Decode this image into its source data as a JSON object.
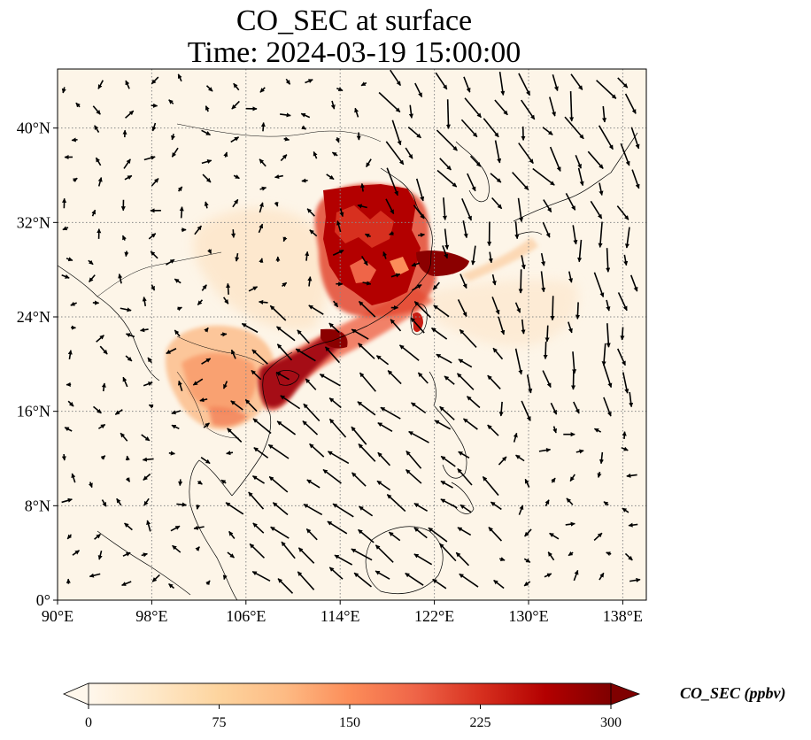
{
  "title": {
    "line1": "CO_SEC at surface",
    "line2": "Time: 2024-03-19 15:00:00"
  },
  "map": {
    "lon_range": [
      90,
      140
    ],
    "lat_range": [
      0,
      45
    ],
    "lon_ticks": [
      {
        "value": 90,
        "label": "90°E"
      },
      {
        "value": 98,
        "label": "98°E"
      },
      {
        "value": 106,
        "label": "106°E"
      },
      {
        "value": 114,
        "label": "114°E"
      },
      {
        "value": 122,
        "label": "122°E"
      },
      {
        "value": 130,
        "label": "130°E"
      },
      {
        "value": 138,
        "label": "138°E"
      }
    ],
    "lat_ticks": [
      {
        "value": 0,
        "label": "0°"
      },
      {
        "value": 8,
        "label": "8°N"
      },
      {
        "value": 16,
        "label": "16°N"
      },
      {
        "value": 24,
        "label": "24°N"
      },
      {
        "value": 32,
        "label": "32°N"
      },
      {
        "value": 40,
        "label": "40°N"
      }
    ],
    "gridlines": "dotted",
    "colors": {
      "background": "#fdf5e8",
      "coast": "#000000",
      "grid": "#888888"
    }
  },
  "colorbar": {
    "label": "CO_SEC (ppbv)",
    "ticks": [
      {
        "value": 0,
        "label": "0"
      },
      {
        "value": 75,
        "label": "75"
      },
      {
        "value": 150,
        "label": "150"
      },
      {
        "value": 225,
        "label": "225"
      },
      {
        "value": 300,
        "label": "300"
      }
    ],
    "range": [
      0,
      300
    ],
    "extend": "both",
    "colormap": "OrRd",
    "stops": [
      "#fff7ec",
      "#fee8c8",
      "#fdd49e",
      "#fdbb84",
      "#fc8d59",
      "#ef6548",
      "#d7301f",
      "#b30000",
      "#7f0000"
    ]
  }
}
